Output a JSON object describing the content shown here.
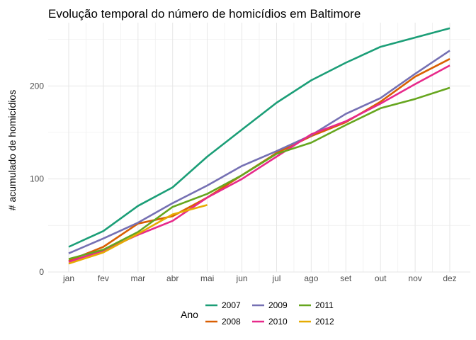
{
  "chart_data": {
    "type": "line",
    "title": "Evolução temporal do número de homicídios em Baltimore",
    "xlabel": "",
    "ylabel": "# acumulado de homicídios",
    "categories": [
      "jan",
      "fev",
      "mar",
      "abr",
      "mai",
      "jun",
      "jul",
      "ago",
      "set",
      "out",
      "nov",
      "dez"
    ],
    "yticks": [
      0,
      100,
      200
    ],
    "ylim": [
      0,
      268
    ],
    "grid": true,
    "legend": {
      "title": "Ano",
      "position": "bottom"
    },
    "series": [
      {
        "name": "2007",
        "color": "#1b9e77",
        "values": [
          27,
          44,
          71,
          91,
          124,
          153,
          182,
          206,
          225,
          242,
          252,
          262
        ]
      },
      {
        "name": "2008",
        "color": "#d95f02",
        "values": [
          12,
          27,
          52,
          60,
          80,
          104,
          128,
          146,
          161,
          183,
          210,
          229
        ]
      },
      {
        "name": "2009",
        "color": "#7570b3",
        "values": [
          20,
          36,
          53,
          74,
          93,
          114,
          130,
          147,
          170,
          187,
          213,
          238
        ]
      },
      {
        "name": "2010",
        "color": "#e7298a",
        "values": [
          11,
          23,
          40,
          55,
          80,
          100,
          124,
          148,
          162,
          181,
          202,
          222
        ]
      },
      {
        "name": "2011",
        "color": "#66a61e",
        "values": [
          14,
          24,
          43,
          70,
          84,
          104,
          127,
          139,
          158,
          176,
          186,
          198
        ]
      },
      {
        "name": "2012",
        "color": "#e6ab02",
        "values": [
          9,
          21,
          41,
          62,
          72,
          null,
          null,
          null,
          null,
          null,
          null,
          null
        ]
      }
    ]
  }
}
